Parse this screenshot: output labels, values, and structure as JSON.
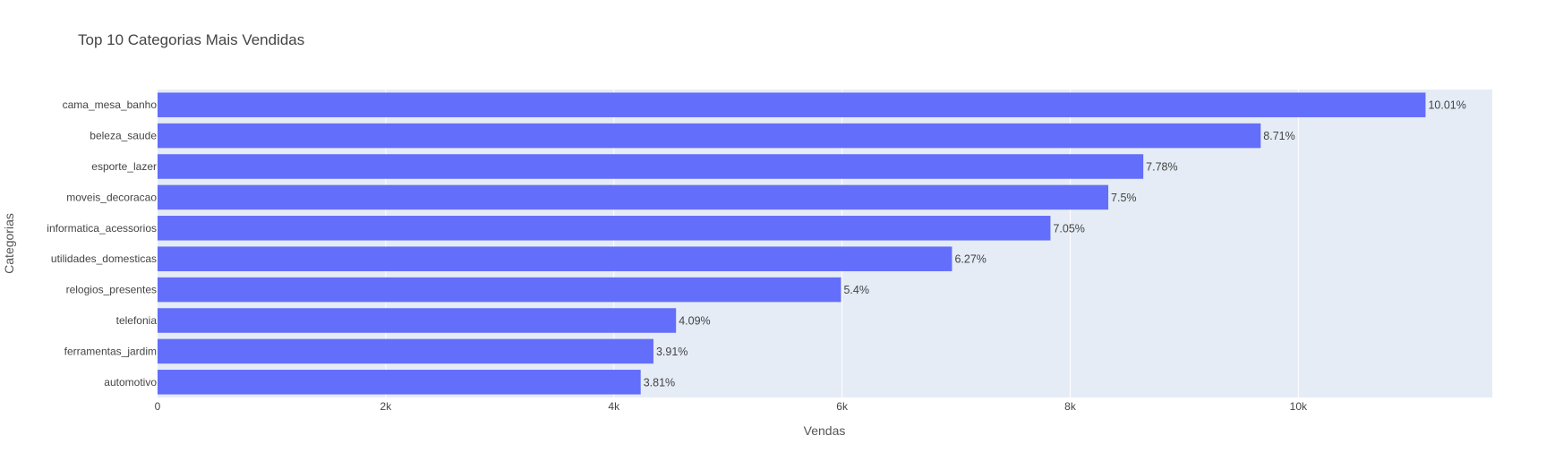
{
  "chart_data": {
    "type": "bar",
    "orientation": "horizontal",
    "title": "Top 10 Categorias Mais Vendidas",
    "xlabel": "Vendas",
    "ylabel": "Categorias",
    "xlim": [
      0,
      11700
    ],
    "x_ticks": [
      {
        "value": 0,
        "label": "0"
      },
      {
        "value": 2000,
        "label": "2k"
      },
      {
        "value": 4000,
        "label": "4k"
      },
      {
        "value": 6000,
        "label": "6k"
      },
      {
        "value": 8000,
        "label": "8k"
      },
      {
        "value": 10000,
        "label": "10k"
      }
    ],
    "categories": [
      "cama_mesa_banho",
      "beleza_saude",
      "esporte_lazer",
      "moveis_decoracao",
      "informatica_acessorios",
      "utilidades_domesticas",
      "relogios_presentes",
      "telefonia",
      "ferramentas_jardim",
      "automotivo"
    ],
    "values": [
      11115,
      9670,
      8641,
      8334,
      7827,
      6964,
      5991,
      4545,
      4347,
      4235
    ],
    "data_labels": [
      "10.01%",
      "8.71%",
      "7.78%",
      "7.5%",
      "7.05%",
      "6.27%",
      "5.4%",
      "4.09%",
      "3.91%",
      "3.81%"
    ],
    "grid": true,
    "legend": "none",
    "colors": {
      "bar": "#636efa",
      "plot_bg": "#e5ecf6",
      "grid": "#ffffff",
      "text": "#444444"
    }
  }
}
